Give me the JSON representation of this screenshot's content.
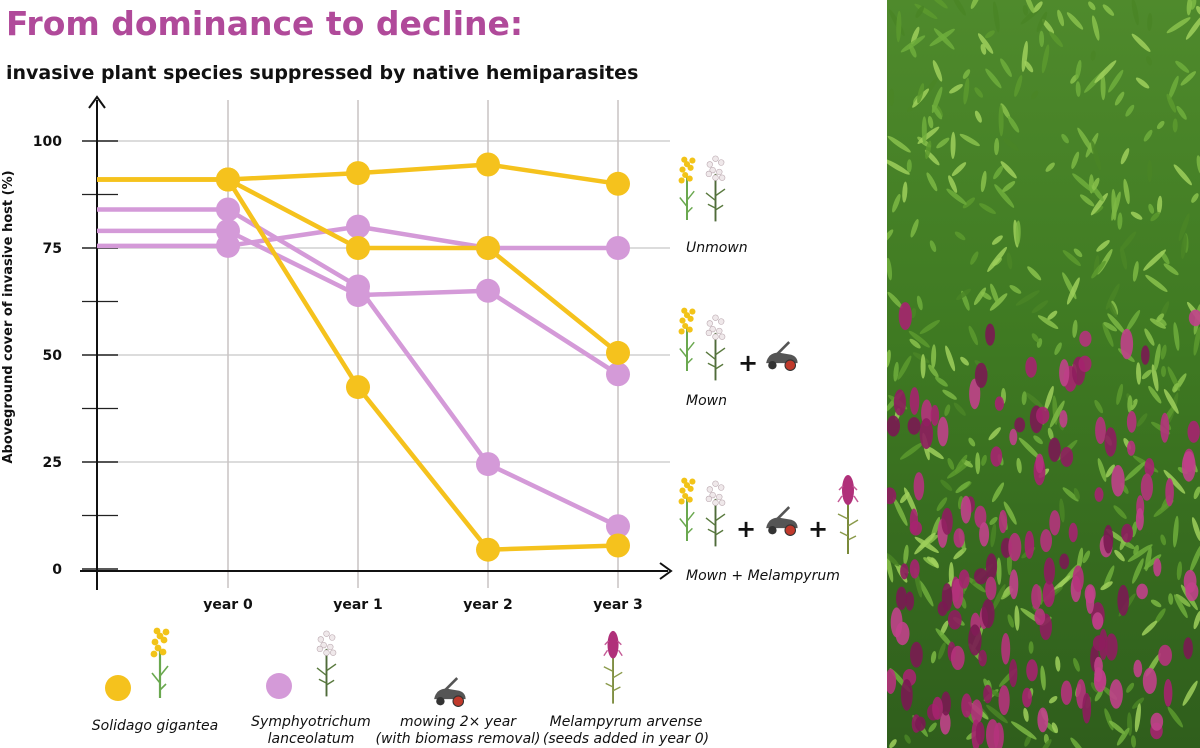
{
  "title": "From dominance to decline:",
  "subtitle": "invasive plant species suppressed by native hemiparasites",
  "colors": {
    "solidago": "#f5c21d",
    "symphyotrichum": "#d49ad8",
    "title": "#b04a9a",
    "mower": "#555555",
    "mower_wheel": "#c0392b"
  },
  "chart_data": {
    "type": "line",
    "categories": [
      "year 0",
      "year 1",
      "year 2",
      "year 3"
    ],
    "ylabel": "Aboveground cover of invasive host (%)",
    "xlabel": "",
    "ylim": [
      0,
      100
    ],
    "yticks": [
      0,
      25,
      50,
      75,
      100
    ],
    "grid": true,
    "series": [
      {
        "species": "Solidago gigantea",
        "treatment": "Unmown",
        "values": [
          91,
          92.5,
          94.5,
          90
        ]
      },
      {
        "species": "Solidago gigantea",
        "treatment": "Mown",
        "values": [
          91,
          75,
          75,
          50.5
        ]
      },
      {
        "species": "Solidago gigantea",
        "treatment": "Mown + Melampyrum",
        "values": [
          91,
          42.5,
          4.5,
          5.5
        ]
      },
      {
        "species": "Symphyotrichum lanceolatum",
        "treatment": "Unmown",
        "values": [
          75.5,
          80,
          75,
          75
        ]
      },
      {
        "species": "Symphyotrichum lanceolatum",
        "treatment": "Mown",
        "values": [
          79,
          64,
          65,
          45.5
        ]
      },
      {
        "species": "Symphyotrichum lanceolatum",
        "treatment": "Mown + Melampyrum",
        "values": [
          84,
          66,
          24.5,
          10
        ]
      }
    ],
    "treatment_labels": [
      "Unmown",
      "Mown",
      "Mown + Melampyrum"
    ],
    "plus": "+"
  },
  "legend": [
    {
      "key": "solidago",
      "label_lines": [
        "Solidago gigantea"
      ],
      "icon": "goldenrod-icon"
    },
    {
      "key": "symphyotrichum",
      "label_lines": [
        "Symphyotrichum",
        "lanceolatum"
      ],
      "icon": "aster-icon"
    },
    {
      "key": "mowing",
      "label_lines": [
        "mowing 2× year",
        "(with biomass removal)"
      ],
      "icon": "lawn-mower-icon"
    },
    {
      "key": "melampyrum",
      "label_lines": [
        "Melampyrum arvense",
        "(seeds added in year 0)"
      ],
      "icon": "melampyrum-icon"
    }
  ]
}
